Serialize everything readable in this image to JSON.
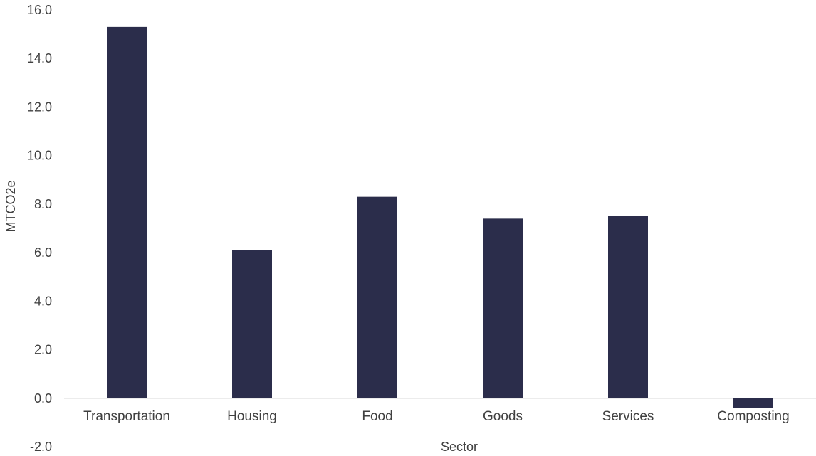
{
  "chart_data": {
    "type": "bar",
    "title": "",
    "xlabel": "Sector",
    "ylabel": "MTCO2e",
    "categories": [
      "Transportation",
      "Housing",
      "Food",
      "Goods",
      "Services",
      "Composting"
    ],
    "values": [
      15.3,
      6.1,
      8.3,
      7.4,
      7.5,
      -0.4
    ],
    "ylim": [
      -2.0,
      16.0
    ],
    "yticks": [
      -2.0,
      0.0,
      2.0,
      4.0,
      6.0,
      8.0,
      10.0,
      12.0,
      14.0,
      16.0
    ],
    "ytick_labels": [
      "-2.0",
      "0.0",
      "2.0",
      "4.0",
      "6.0",
      "8.0",
      "10.0",
      "12.0",
      "14.0",
      "16.0"
    ],
    "grid": false,
    "legend": "none",
    "bar_color": "#2b2d4b",
    "baseline_color": "#d9d9d9"
  }
}
